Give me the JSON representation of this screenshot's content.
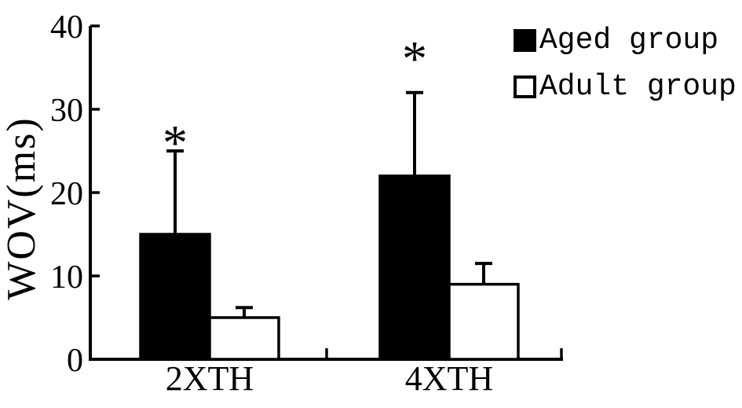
{
  "figure": {
    "background_color": "#ffffff",
    "ink_color": "#000000"
  },
  "chart_data": {
    "type": "bar",
    "title": "",
    "ylabel": "WOV(ms)",
    "xlabel": "",
    "categories": [
      "2XTH",
      "4XTH"
    ],
    "series": [
      {
        "name": "Aged group",
        "fill": "#000000",
        "values": [
          15,
          22
        ],
        "errors_plus": [
          10,
          10
        ],
        "significance": [
          "*",
          "*"
        ]
      },
      {
        "name": "Adult group",
        "fill": "#ffffff",
        "values": [
          5,
          9
        ],
        "errors_plus": [
          1.2,
          2.5
        ],
        "significance": [
          "",
          ""
        ]
      }
    ],
    "ylim": [
      0,
      40
    ],
    "yticks": [
      0,
      10,
      20,
      30,
      40
    ],
    "grid": false,
    "legend_position": "top-right",
    "error_bars": "upper-only",
    "significance_marker": "*"
  }
}
